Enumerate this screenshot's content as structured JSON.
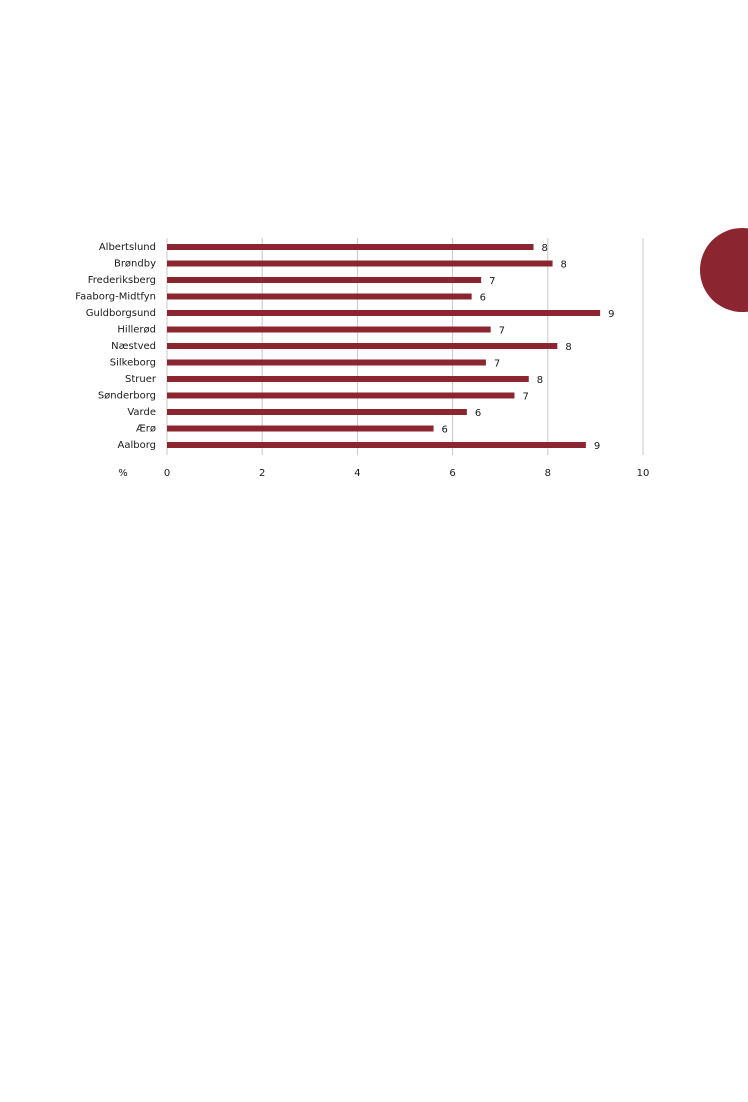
{
  "chart_data": {
    "type": "bar",
    "orientation": "horizontal",
    "x_label": "%",
    "categories": [
      "Albertslund",
      "Brøndby",
      "Frederiksberg",
      "Faaborg-Midtfyn",
      "Guldborgsund",
      "Hillerød",
      "Næstved",
      "Silkeborg",
      "Struer",
      "Sønderborg",
      "Varde",
      "Ærø",
      "Aalborg"
    ],
    "values": [
      7.7,
      8.1,
      6.6,
      6.4,
      9.1,
      6.8,
      8.2,
      6.7,
      7.6,
      7.3,
      6.3,
      5.6,
      8.8
    ],
    "value_labels": [
      "8",
      "8",
      "7",
      "6",
      "9",
      "7",
      "8",
      "7",
      "8",
      "7",
      "6",
      "6",
      "9"
    ],
    "color": "#8b2630",
    "xlim": [
      0,
      10
    ],
    "xticks": [
      0,
      2,
      4,
      6,
      8,
      10
    ],
    "grid": true
  }
}
